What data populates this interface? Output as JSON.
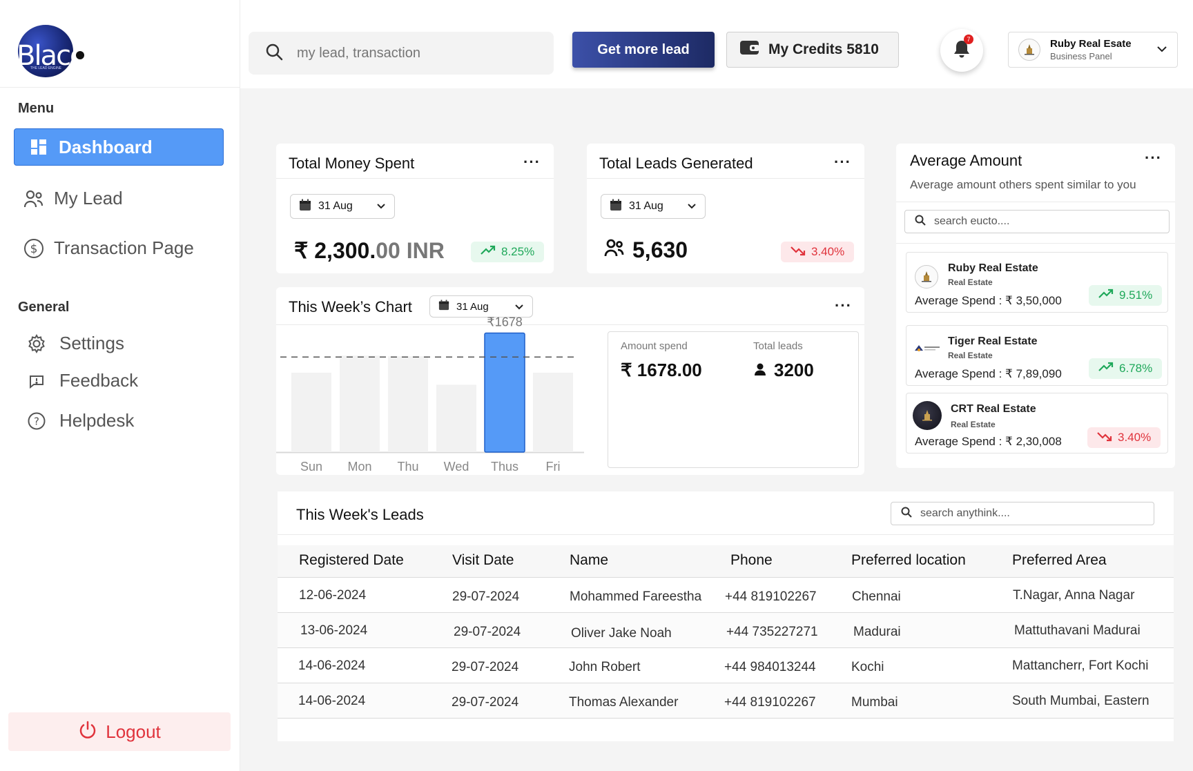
{
  "brand": {
    "logo_text": "Blaco",
    "tagline": "THE LEAD ENGINE"
  },
  "sidebar": {
    "menu_label": "Menu",
    "menu_items": [
      {
        "label": "Dashboard",
        "icon": "dashboard-icon",
        "active": true
      },
      {
        "label": "My Lead",
        "icon": "users-icon"
      },
      {
        "label": "Transaction Page",
        "icon": "dollar-icon"
      }
    ],
    "general_label": "General",
    "general_items": [
      {
        "label": "Settings",
        "icon": "gear-icon"
      },
      {
        "label": "Feedback",
        "icon": "feedback-icon"
      },
      {
        "label": "Helpdesk",
        "icon": "help-icon"
      }
    ],
    "logout_label": "Logout"
  },
  "header": {
    "search_placeholder": "my lead, transaction",
    "get_lead_label": "Get more lead",
    "credits_label": "My Credits 5810",
    "notification_count": "7",
    "profile_name": "Ruby Real Esate",
    "profile_sub": "Business Panel"
  },
  "money_card": {
    "title": "Total Money Spent",
    "date": "31 Aug",
    "value_main": "₹ 2,300.",
    "value_decimal": "00 INR",
    "change": "8.25%",
    "trend": "up"
  },
  "leads_card": {
    "title": "Total Leads Generated",
    "date": "31 Aug",
    "value": "5,630",
    "change": "3.40%",
    "trend": "down"
  },
  "week_chart": {
    "title": "This Week’s Chart",
    "date": "31 Aug",
    "highlight_label": "₹1678",
    "stats": {
      "amount_label": "Amount spend",
      "amount_value": "₹ 1678.00",
      "leads_label": "Total leads",
      "leads_value": "3200"
    }
  },
  "chart_data": {
    "type": "bar",
    "categories": [
      "Sun",
      "Mon",
      "Thu",
      "Wed",
      "Thus",
      "Fri"
    ],
    "values": [
      1120,
      1360,
      1350,
      950,
      1678,
      1120
    ],
    "highlight_index": 4,
    "average_line": 1340,
    "ylim": [
      0,
      1800
    ],
    "highlight_color": "#559af7",
    "bar_color": "#f2f2f2"
  },
  "average_card": {
    "title": "Average Amount",
    "subtitle": "Average amount others spent similar to you",
    "search_placeholder": "search eucto....",
    "items": [
      {
        "name": "Ruby Real Estate",
        "type": "Real Estate",
        "spend": "Average Spend : ₹ 3,50,000",
        "change": "9.51%",
        "trend": "up"
      },
      {
        "name": "Tiger Real Estate",
        "type": "Real Estate",
        "spend": "Average Spend : ₹ 7,89,090",
        "change": "6.78%",
        "trend": "up"
      },
      {
        "name": "CRT Real Estate",
        "type": "Real Estate",
        "spend": "Average Spend : ₹ 2,30,008",
        "change": "3.40%",
        "trend": "down"
      }
    ]
  },
  "leads_table": {
    "title": "This Week's Leads",
    "search_placeholder": "search anythink....",
    "columns": [
      "Registered Date",
      "Visit Date",
      "Name",
      "Phone",
      "Preferred location",
      "Preferred Area"
    ],
    "rows": [
      [
        "12-06-2024",
        "29-07-2024",
        "Mohammed Fareestha",
        "+44 819102267",
        "Chennai",
        "T.Nagar, Anna Nagar"
      ],
      [
        "13-06-2024",
        "29-07-2024",
        "Oliver Jake Noah",
        "+44 735227271",
        "Madurai",
        "Mattuthavani Madurai"
      ],
      [
        "14-06-2024",
        "29-07-2024",
        "John Robert",
        "+44 984013244",
        "Kochi",
        "Mattancherr, Fort Kochi"
      ],
      [
        "14-06-2024",
        "29-07-2024",
        "Thomas Alexander",
        "+44 819102267",
        "Mumbai",
        "South Mumbai, Eastern"
      ]
    ]
  }
}
